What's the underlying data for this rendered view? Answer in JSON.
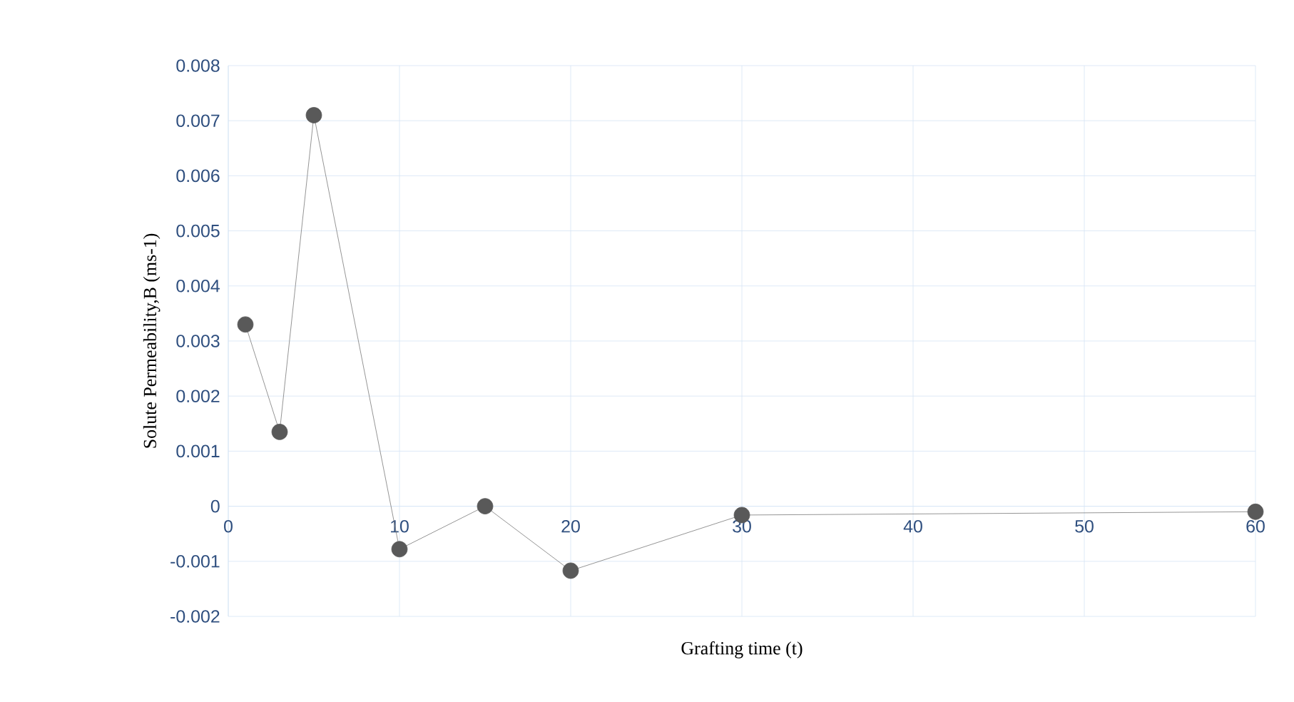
{
  "chart_data": {
    "type": "line",
    "xlabel": "Grafting time (t)",
    "ylabel": "Solute Permeability,B  (ms-1)",
    "x": [
      1,
      3,
      5,
      10,
      15,
      20,
      30,
      60
    ],
    "series": [
      {
        "color": "#595959",
        "values": [
          0.0033,
          0.00135,
          0.0071,
          -0.00078,
          0.0,
          -0.00117,
          -0.00016,
          -0.0001
        ]
      }
    ],
    "xlim": [
      0,
      60
    ],
    "xticks": [
      0,
      10,
      20,
      30,
      40,
      50,
      60
    ],
    "ylim": [
      -0.002,
      0.008
    ],
    "yticks": [
      -0.002,
      -0.001,
      0,
      0.001,
      0.002,
      0.003,
      0.004,
      0.005,
      0.006,
      0.007,
      0.008
    ],
    "grid": true,
    "marker": "circle",
    "line_style": "solid"
  }
}
